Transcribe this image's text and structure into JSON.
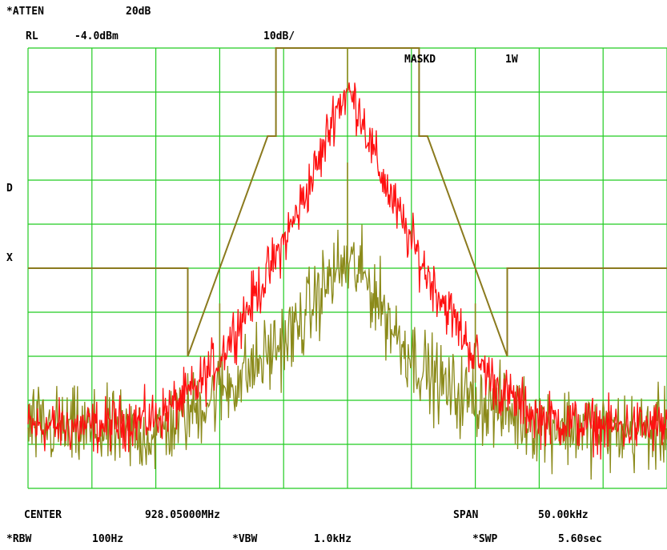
{
  "header": {
    "atten_label": "*ATTEN",
    "atten_value": "20dB",
    "rl_label": "RL",
    "rl_value": "-4.0dBm",
    "scale": "10dB/",
    "mask_label": "MASKD",
    "mask_value": "1W"
  },
  "side_markers": {
    "d": "D",
    "x": "X"
  },
  "footer": {
    "center_label": "CENTER",
    "center_value": "928.05000MHz",
    "span_label": "SPAN",
    "span_value": "50.00kHz",
    "rbw_label": "*RBW",
    "rbw_value": "100Hz",
    "vbw_label": "*VBW",
    "vbw_value": "1.0kHz",
    "swp_label": "*SWP",
    "swp_value": "5.60sec"
  },
  "colors": {
    "grid": "#22cc22",
    "trace_red": "#ff1010",
    "trace_olive": "#8b8a1a",
    "mask": "#8b7a1e",
    "text": "#000000",
    "background": "#ffffff"
  },
  "chart_data": {
    "type": "line",
    "grid": true,
    "xlim": [
      -25,
      25
    ],
    "ylim": [
      -104,
      -4
    ],
    "x_unit": "kHz offset from center",
    "y_unit": "dBm",
    "mask": {
      "x": [
        -25,
        -12.5,
        -12.5,
        -6.25,
        -5.6,
        -5.6,
        5.6,
        5.6,
        6.25,
        12.5,
        12.5,
        25
      ],
      "y": [
        -54,
        -54,
        -74,
        -24,
        -24,
        -4,
        -4,
        -24,
        -24,
        -74,
        -54,
        -54
      ]
    },
    "series": [
      {
        "peak_db": -14,
        "carrier_db": -4,
        "x": [
          -25,
          -20,
          -15,
          -12,
          -10,
          -8,
          -6,
          -4,
          -2,
          -1,
          0,
          1,
          2,
          4,
          6,
          8,
          10,
          12,
          15,
          20,
          25
        ],
        "y": [
          -90,
          -90,
          -88,
          -82,
          -74,
          -64,
          -54,
          -42,
          -28,
          -18,
          -14,
          -18,
          -28,
          -42,
          -54,
          -64,
          -74,
          -82,
          -88,
          -90,
          -90
        ]
      },
      {
        "peak_db": -53,
        "carrier_db": -2,
        "spur_db": [
          -36,
          -62
        ],
        "x": [
          -25,
          -20,
          -15,
          -10,
          -8,
          -6,
          -4,
          -2,
          -1,
          0,
          1,
          2,
          4,
          6,
          8,
          10,
          15,
          20,
          25
        ],
        "y": [
          -90,
          -91,
          -92,
          -82,
          -78,
          -73,
          -68,
          -59,
          -55,
          -53,
          -55,
          -59,
          -70,
          -77,
          -82,
          -84,
          -89,
          -91,
          -91
        ]
      }
    ]
  }
}
